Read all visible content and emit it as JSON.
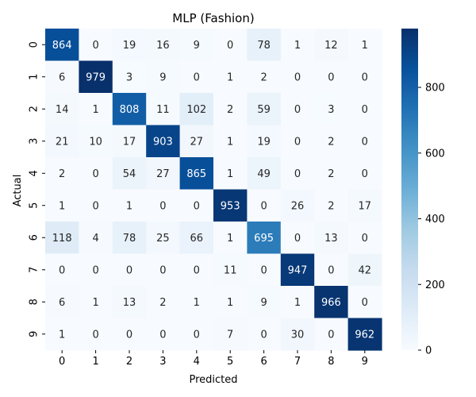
{
  "chart_data": {
    "type": "heatmap",
    "title": "MLP (Fashion)",
    "xlabel": "Predicted",
    "ylabel": "Actual",
    "x_categories": [
      "0",
      "1",
      "2",
      "3",
      "4",
      "5",
      "6",
      "7",
      "8",
      "9"
    ],
    "y_categories": [
      "0",
      "1",
      "2",
      "3",
      "4",
      "5",
      "6",
      "7",
      "8",
      "9"
    ],
    "values": [
      [
        864,
        0,
        19,
        16,
        9,
        0,
        78,
        1,
        12,
        1
      ],
      [
        6,
        979,
        3,
        9,
        0,
        1,
        2,
        0,
        0,
        0
      ],
      [
        14,
        1,
        808,
        11,
        102,
        2,
        59,
        0,
        3,
        0
      ],
      [
        21,
        10,
        17,
        903,
        27,
        1,
        19,
        0,
        2,
        0
      ],
      [
        2,
        0,
        54,
        27,
        865,
        1,
        49,
        0,
        2,
        0
      ],
      [
        1,
        0,
        1,
        0,
        0,
        953,
        0,
        26,
        2,
        17
      ],
      [
        118,
        4,
        78,
        25,
        66,
        1,
        695,
        0,
        13,
        0
      ],
      [
        0,
        0,
        0,
        0,
        0,
        11,
        0,
        947,
        0,
        42
      ],
      [
        6,
        1,
        13,
        2,
        1,
        1,
        9,
        1,
        966,
        0
      ],
      [
        1,
        0,
        0,
        0,
        0,
        7,
        0,
        30,
        0,
        962
      ]
    ],
    "colormap": "Blues",
    "color_range": [
      0,
      979
    ],
    "colorbar_ticks": [
      "0",
      "200",
      "400",
      "600",
      "800"
    ],
    "colorbar_tick_values": [
      0,
      200,
      400,
      600,
      800
    ],
    "grid": false
  }
}
